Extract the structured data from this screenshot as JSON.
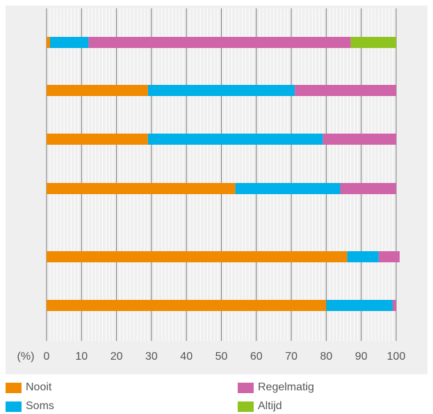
{
  "chart_data": {
    "type": "bar",
    "orientation": "horizontal",
    "stacked": true,
    "title": "",
    "xlabel": "(%)",
    "ylabel": "",
    "xlim": [
      0,
      100
    ],
    "xticks": [
      0,
      10,
      20,
      30,
      40,
      50,
      60,
      70,
      80,
      90,
      100
    ],
    "grid": true,
    "legend_position": "bottom",
    "categories": [
      "",
      "",
      "",
      "",
      "",
      ""
    ],
    "series": [
      {
        "name": "Nooit",
        "color": "#f08a00",
        "values": [
          1,
          29,
          29,
          54,
          86,
          80
        ]
      },
      {
        "name": "Soms",
        "color": "#00b0e8",
        "values": [
          11,
          42,
          50,
          30,
          9,
          19
        ]
      },
      {
        "name": "Regelmatig",
        "color": "#d064a8",
        "values": [
          75,
          29,
          21,
          16,
          6,
          1
        ]
      },
      {
        "name": "Altijd",
        "color": "#8fc31f",
        "values": [
          13,
          0,
          0,
          0,
          0,
          0
        ]
      }
    ]
  }
}
